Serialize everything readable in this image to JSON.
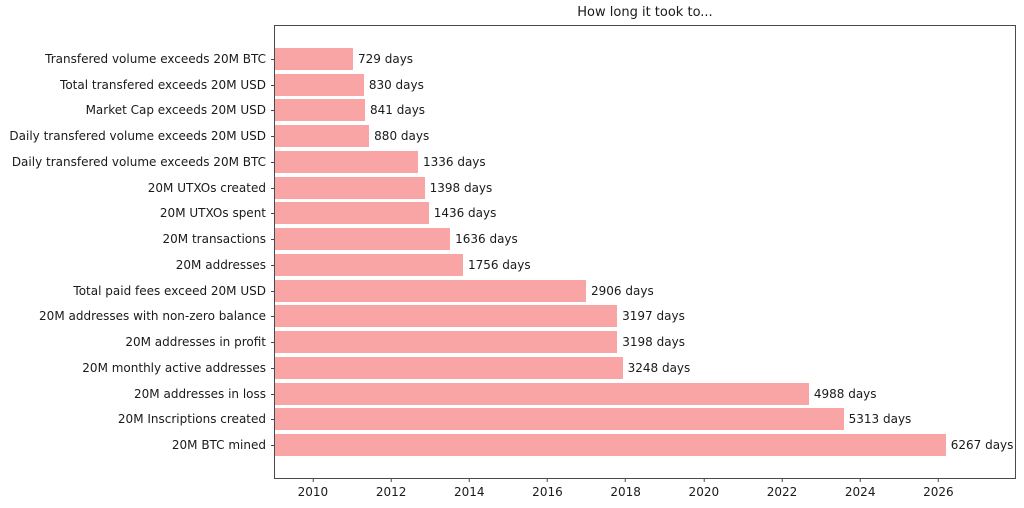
{
  "title": "How long it took to...",
  "colors": {
    "bar": "#f9a5a5",
    "text": "#1a1a1a",
    "spine": "#4a4a4a",
    "background": "#ffffff"
  },
  "chart_data": {
    "type": "bar",
    "orientation": "horizontal",
    "title": "How long it took to...",
    "categories": [
      "Transfered volume exceeds 20M BTC",
      "Total transfered exceeds 20M USD",
      "Market Cap exceeds 20M USD",
      "Daily transfered volume exceeds 20M USD",
      "Daily transfered volume exceeds 20M BTC",
      "20M UTXOs created",
      "20M UTXOs spent",
      "20M transactions",
      "20M addresses",
      "Total paid fees exceed 20M USD",
      "20M addresses with non-zero balance",
      "20M addresses in profit",
      "20M monthly active addresses",
      "20M addresses in loss",
      "20M Inscriptions created",
      "20M BTC mined"
    ],
    "values": [
      729,
      830,
      841,
      880,
      1336,
      1398,
      1436,
      1636,
      1756,
      2906,
      3197,
      3198,
      3248,
      4988,
      5313,
      6267
    ],
    "value_unit": "days",
    "value_label_suffix": " days",
    "bar_color": "#f9a5a5",
    "grid": false,
    "legend": "none",
    "x_axis": {
      "unit": "year",
      "start": 2009.03,
      "end": 2027.96,
      "ticks": [
        2010,
        2012,
        2014,
        2016,
        2018,
        2020,
        2022,
        2024,
        2026
      ]
    },
    "days_per_year": 365.25
  }
}
